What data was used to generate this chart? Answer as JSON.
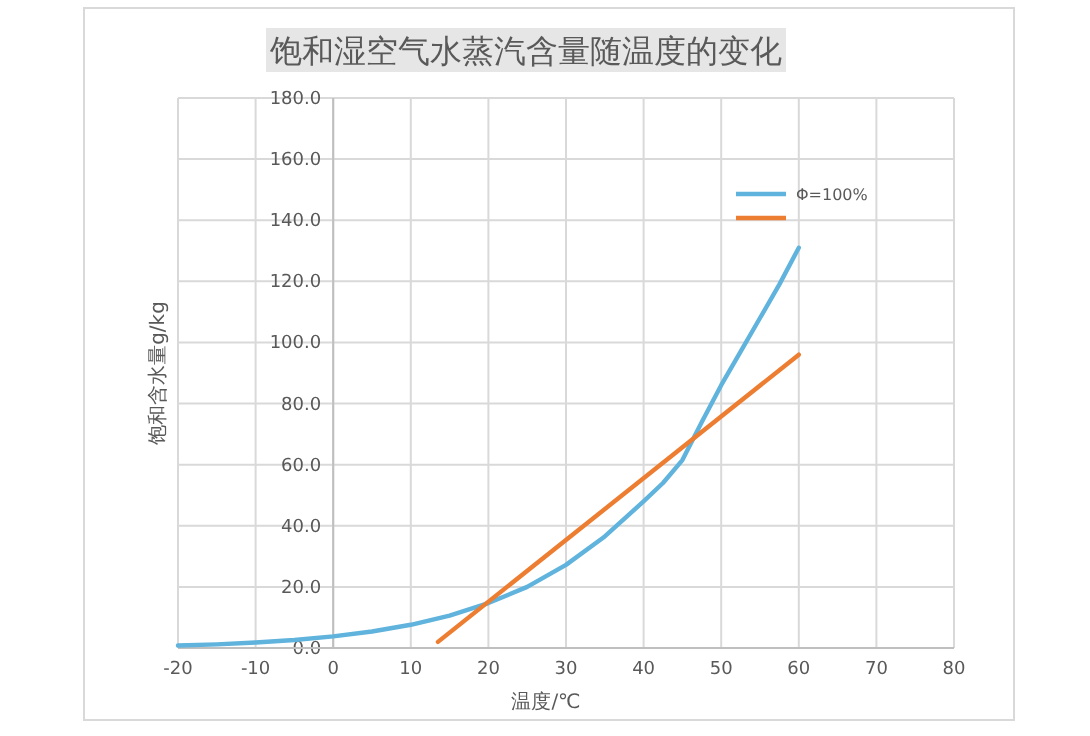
{
  "chart_data": {
    "type": "line",
    "title": "饱和湿空气水蒸汽含量随温度的变化",
    "xlabel": "温度/℃",
    "ylabel": "饱和含水量g/kg",
    "xlim": [
      -20,
      80
    ],
    "xticks": [
      -20,
      -10,
      0,
      10,
      20,
      30,
      40,
      50,
      60,
      70,
      80
    ],
    "ylim": [
      0,
      180
    ],
    "yticks": [
      {
        "value": 0,
        "label": "0.0"
      },
      {
        "value": 20,
        "label": "20.0"
      },
      {
        "value": 40,
        "label": "40.0"
      },
      {
        "value": 60,
        "label": "60.0"
      },
      {
        "value": 80,
        "label": "80.0"
      },
      {
        "value": 100,
        "label": "100.0"
      },
      {
        "value": 120,
        "label": "120.0"
      },
      {
        "value": 140,
        "label": "140.0"
      },
      {
        "value": 160,
        "label": "160.0"
      },
      {
        "value": 180,
        "label": "180.0"
      }
    ],
    "grid": true,
    "legend": "top right",
    "marker": "none",
    "line_style": "solid",
    "series": [
      {
        "name": "Φ=100%",
        "color": "#5fb3dc",
        "x": [
          -20,
          -15,
          -10,
          -5,
          0,
          5,
          10,
          15,
          20,
          25,
          30,
          35,
          40,
          42.5,
          45,
          47.5,
          50,
          52.5,
          55,
          57.5,
          60
        ],
        "values": [
          0.8,
          1.2,
          1.8,
          2.6,
          3.8,
          5.4,
          7.6,
          10.6,
          14.7,
          20,
          27.2,
          36.5,
          48,
          54,
          61.5,
          74,
          86,
          97,
          108,
          119,
          131
        ]
      },
      {
        "color": "#ed7d31",
        "x": [
          13.5,
          60
        ],
        "values": [
          2,
          96
        ]
      }
    ]
  }
}
